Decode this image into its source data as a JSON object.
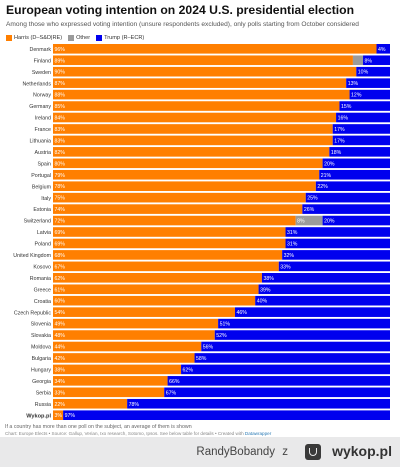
{
  "header": {
    "title": "European voting intention on 2024 U.S. presidential election",
    "subtitle": "Among those who expressed voting intention (unsure respondents excluded), only polls starting from October considered"
  },
  "legend": [
    {
      "label": "Harris (D–S&D|RE)",
      "color": "#ff7f00"
    },
    {
      "label": "Other",
      "color": "#9b9b9b"
    },
    {
      "label": "Trump (R–ECR)",
      "color": "#0000ee"
    }
  ],
  "colors": {
    "harris": "#ff7f00",
    "other": "#9b9b9b",
    "trump": "#0000ee"
  },
  "chart_data": {
    "type": "bar",
    "orientation": "horizontal-stacked-100",
    "series": [
      {
        "name": "Harris (D–S&D|RE)",
        "values": [
          96,
          89,
          90,
          87,
          88,
          85,
          84,
          83,
          83,
          82,
          80,
          79,
          78,
          75,
          74,
          72,
          69,
          69,
          68,
          67,
          62,
          61,
          60,
          54,
          49,
          48,
          44,
          42,
          38,
          34,
          33,
          22,
          3
        ]
      },
      {
        "name": "Other",
        "values": [
          0,
          3,
          0,
          0,
          0,
          0,
          0,
          0,
          0,
          0,
          0,
          0,
          0,
          0,
          0,
          8,
          0,
          0,
          0,
          0,
          0,
          0,
          0,
          0,
          0,
          0,
          0,
          0,
          0,
          0,
          0,
          0,
          0
        ]
      },
      {
        "name": "Trump (R–ECR)",
        "values": [
          4,
          8,
          10,
          13,
          12,
          15,
          16,
          17,
          17,
          18,
          20,
          21,
          22,
          25,
          26,
          20,
          31,
          31,
          32,
          33,
          38,
          39,
          40,
          46,
          51,
          52,
          56,
          58,
          62,
          66,
          67,
          78,
          97
        ]
      }
    ],
    "categories": [
      "Denmark",
      "Finland",
      "Sweden",
      "Netherlands",
      "Norway",
      "Germany",
      "Ireland",
      "France",
      "Lithuania",
      "Austria",
      "Spain",
      "Portugal",
      "Belgium",
      "Italy",
      "Estonia",
      "Switzerland",
      "Latvia",
      "Poland",
      "United Kingdom",
      "Kosovo",
      "Romania",
      "Greece",
      "Croatia",
      "Czech Republic",
      "Slovenia",
      "Slovakia",
      "Moldova",
      "Bulgaria",
      "Hungary",
      "Georgia",
      "Serbia",
      "Russia",
      "Wykop.pl"
    ],
    "highlight_category": "Wykop.pl",
    "labels": {
      "harris": [
        "96%",
        "89%",
        "90%",
        "87%",
        "88%",
        "85%",
        "84%",
        "83%",
        "83%",
        "82%",
        "80%",
        "79%",
        "78%",
        "75%",
        "74%",
        "72%",
        "69%",
        "69%",
        "68%",
        "67%",
        "62%",
        "61%",
        "60%",
        "54%",
        "49%",
        "48%",
        "44%",
        "42%",
        "38%",
        "34%",
        "33%",
        "22%",
        "3%"
      ],
      "other": [
        "",
        "",
        "",
        "",
        "",
        "",
        "",
        "",
        "",
        "",
        "",
        "",
        "",
        "",
        "",
        "8%",
        "",
        "",
        "",
        "",
        "",
        "",
        "",
        "",
        "",
        "",
        "",
        "",
        "",
        "",
        "",
        "",
        ""
      ],
      "trump": [
        "4%",
        "8%",
        "10%",
        "13%",
        "12%",
        "15%",
        "16%",
        "17%",
        "17%",
        "18%",
        "20%",
        "21%",
        "22%",
        "25%",
        "26%",
        "20%",
        "31%",
        "31%",
        "32%",
        "33%",
        "38%",
        "39%",
        "40%",
        "46%",
        "51%",
        "52%",
        "56%",
        "58%",
        "62%",
        "66%",
        "67%",
        "78%",
        "97%"
      ]
    },
    "xlim": [
      0,
      100
    ]
  },
  "notes": {
    "footnote": "If a country has more than one poll on the subject, an average of them is shown",
    "source_prefix": "Chart: Europe Elects • Source: Gallup, Verian, Ixo research, Sotomo, Ipsos. See below table for details • Created with ",
    "source_link": "Datawrapper"
  },
  "watermark": {
    "user": "RandyBobandy",
    "separator": "z",
    "brand": "wykop.pl"
  }
}
